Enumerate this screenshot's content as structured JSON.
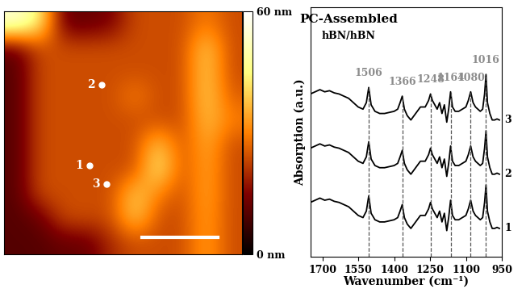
{
  "chart_data": [
    {
      "type": "heatmap",
      "cells": [
        [
          55,
          45,
          12,
          12,
          14,
          24,
          24,
          24,
          30,
          24
        ],
        [
          12,
          24,
          24,
          24,
          24,
          24,
          24,
          24,
          40,
          24
        ],
        [
          10,
          24,
          24,
          24,
          24,
          24,
          24,
          24,
          40,
          24
        ],
        [
          10,
          24,
          24,
          24,
          24,
          30,
          24,
          24,
          40,
          26
        ],
        [
          10,
          24,
          24,
          24,
          24,
          24,
          24,
          24,
          38,
          30
        ],
        [
          10,
          24,
          24,
          24,
          24,
          24,
          40,
          24,
          36,
          24
        ],
        [
          10,
          24,
          24,
          24,
          24,
          24,
          45,
          24,
          35,
          24
        ],
        [
          10,
          24,
          24,
          24,
          24,
          40,
          30,
          24,
          35,
          24
        ],
        [
          10,
          12,
          24,
          24,
          24,
          40,
          24,
          24,
          34,
          24
        ],
        [
          10,
          10,
          12,
          12,
          20,
          24,
          24,
          24,
          34,
          24
        ]
      ],
      "colorbar": {
        "range": [
          0,
          60
        ],
        "ticks": [
          {
            "value": 0,
            "label": "0 nm"
          },
          {
            "value": 60,
            "label": "60 nm"
          }
        ]
      },
      "xlim": [
        0,
        10
      ],
      "ylim": [
        0,
        10
      ],
      "tick_labels": false,
      "points": [
        {
          "label": "1",
          "x": 3.6,
          "y": 3.65
        },
        {
          "label": "2",
          "x": 4.1,
          "y": 7.0
        },
        {
          "label": "3",
          "x": 4.3,
          "y": 2.9
        }
      ]
    },
    {
      "type": "line",
      "title": "PC-Assembled",
      "subtitle": "hBN/hBN",
      "x_label": "Wavenumber (cm⁻¹)",
      "y_label": "Absorption (a.u.)",
      "x": [
        1750,
        1730,
        1710,
        1690,
        1670,
        1650,
        1630,
        1610,
        1590,
        1570,
        1550,
        1530,
        1516,
        1506,
        1496,
        1480,
        1460,
        1440,
        1420,
        1400,
        1385,
        1375,
        1366,
        1357,
        1345,
        1330,
        1310,
        1290,
        1270,
        1256,
        1248,
        1240,
        1230,
        1220,
        1210,
        1200,
        1190,
        1180,
        1172,
        1164,
        1156,
        1145,
        1130,
        1115,
        1100,
        1090,
        1080,
        1070,
        1060,
        1050,
        1040,
        1030,
        1022,
        1016,
        1010,
        1000,
        990,
        980,
        970,
        960
      ],
      "series": [
        {
          "name": "1",
          "color": "#000000",
          "values": [
            2.5,
            2.6,
            2.7,
            2.6,
            2.65,
            2.55,
            2.5,
            2.4,
            2.3,
            2.1,
            1.9,
            1.8,
            2.1,
            2.8,
            2.0,
            1.7,
            1.6,
            1.6,
            1.65,
            1.7,
            1.8,
            2.1,
            2.4,
            1.8,
            1.5,
            1.3,
            1.6,
            1.9,
            1.9,
            2.2,
            2.5,
            2.2,
            2.0,
            1.8,
            2.1,
            1.6,
            2.0,
            1.2,
            1.8,
            2.6,
            1.9,
            1.7,
            1.7,
            1.8,
            1.9,
            2.2,
            2.6,
            2.1,
            1.9,
            1.8,
            1.7,
            1.8,
            2.5,
            3.3,
            2.1,
            1.6,
            1.3,
            1.3,
            1.35,
            1.3
          ]
        },
        {
          "name": "2",
          "color": "#000000",
          "values": [
            5.0,
            5.1,
            5.2,
            5.1,
            5.15,
            5.05,
            5.0,
            4.9,
            4.8,
            4.6,
            4.4,
            4.3,
            4.6,
            5.3,
            4.5,
            4.2,
            4.1,
            4.1,
            4.15,
            4.2,
            4.3,
            4.6,
            4.9,
            4.3,
            4.0,
            3.8,
            4.1,
            4.4,
            4.4,
            4.7,
            5.0,
            4.7,
            4.5,
            4.3,
            4.6,
            4.1,
            4.5,
            3.7,
            4.3,
            5.1,
            4.4,
            4.2,
            4.2,
            4.3,
            4.4,
            4.7,
            5.1,
            4.6,
            4.4,
            4.3,
            4.2,
            4.3,
            5.0,
            5.8,
            4.6,
            4.1,
            3.8,
            3.8,
            3.85,
            3.8
          ]
        },
        {
          "name": "3",
          "color": "#000000",
          "values": [
            7.5,
            7.6,
            7.7,
            7.6,
            7.65,
            7.55,
            7.5,
            7.4,
            7.3,
            7.1,
            6.9,
            6.8,
            7.1,
            7.8,
            7.0,
            6.7,
            6.6,
            6.6,
            6.65,
            6.7,
            6.8,
            7.1,
            7.4,
            6.8,
            6.5,
            6.3,
            6.6,
            6.9,
            6.9,
            7.2,
            7.5,
            7.2,
            7.0,
            6.8,
            7.1,
            6.6,
            7.0,
            6.2,
            6.8,
            7.6,
            6.9,
            6.7,
            6.7,
            6.8,
            6.9,
            7.2,
            7.6,
            7.1,
            6.9,
            6.8,
            6.7,
            6.8,
            7.5,
            8.4,
            7.1,
            6.6,
            6.3,
            6.3,
            6.35,
            6.3
          ]
        }
      ],
      "xlim": [
        1750,
        950
      ],
      "xticks": [
        1700,
        1550,
        1400,
        1250,
        1100,
        950
      ],
      "ylim": [
        0,
        11.5
      ],
      "yticks": [],
      "tick_labels": "x",
      "peaks": [
        1506,
        1366,
        1248,
        1164,
        1080,
        1016
      ]
    }
  ]
}
